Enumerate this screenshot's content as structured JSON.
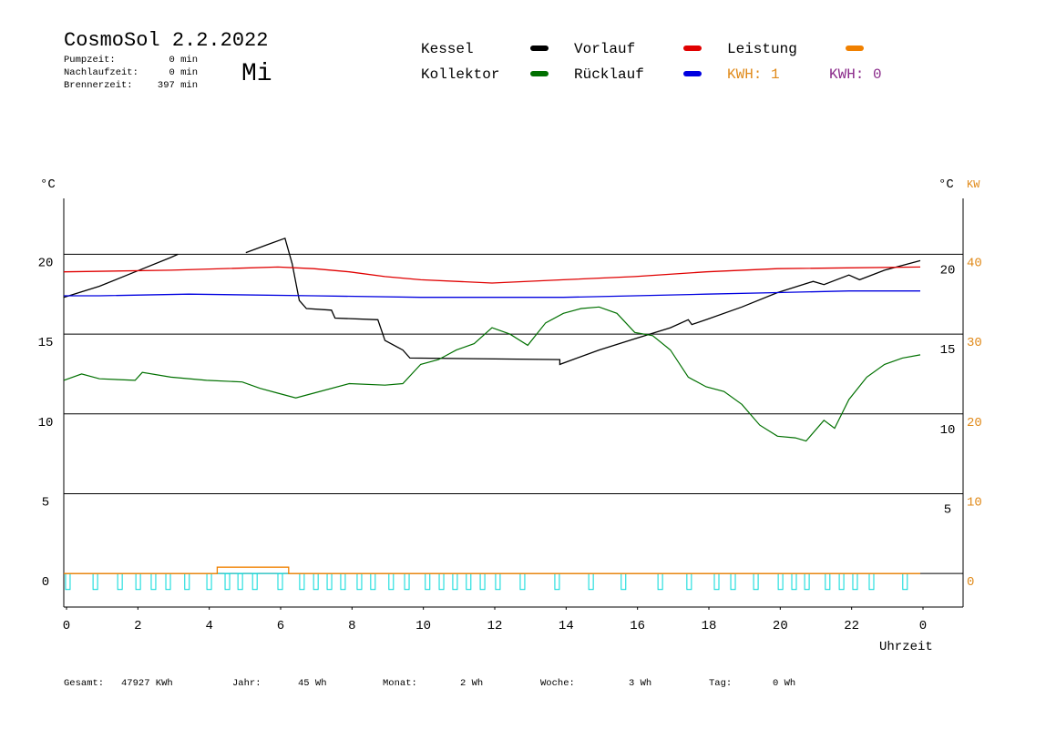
{
  "chart_data": {
    "type": "line",
    "title": "CosmoSol 2.2.2022",
    "day": "Mi",
    "info": [
      {
        "label": "Pumpzeit:",
        "value": "0 min"
      },
      {
        "label": "Nachlaufzeit:",
        "value": "0 min"
      },
      {
        "label": "Brennerzeit:",
        "value": "397 min"
      }
    ],
    "kwh": [
      {
        "label": "KWH: 1",
        "color": "#e08a1a"
      },
      {
        "label": "KWH: 0",
        "color": "#8a2a8a"
      }
    ],
    "ylabel": "°C",
    "y2label_left": "°C",
    "y2label": "KW",
    "xlabel": "Uhrzeit",
    "xlim": [
      0,
      25.2
    ],
    "xticks": [
      0,
      2,
      4,
      6,
      8,
      10,
      12,
      14,
      16,
      18,
      20,
      22,
      {
        "value": 24,
        "label": "0"
      }
    ],
    "ylim": [
      -2.1,
      23.5
    ],
    "yticks": [
      0,
      5,
      10,
      15,
      20
    ],
    "y_inner_ticks": [
      20,
      15,
      10,
      5
    ],
    "y2lim": [
      -4.2,
      47
    ],
    "y2ticks": [
      0,
      10,
      20,
      30,
      40
    ],
    "grid": true,
    "series": [
      {
        "name": "Kessel",
        "color": "#000000",
        "x": [
          0,
          1,
          2,
          3,
          3.2,
          4.0,
          5.1,
          5.7,
          6.2,
          6.4,
          6.6,
          6.8,
          7.5,
          7.6,
          8.8,
          9.0,
          9.5,
          9.7,
          13.9,
          13.9,
          15,
          16,
          17,
          17.5,
          17.6,
          18,
          19,
          20,
          21,
          21.3,
          22,
          22.3,
          23,
          24
        ],
        "values": [
          17.3,
          18.0,
          18.9,
          19.8,
          20.0,
          null,
          20.1,
          20.6,
          21.0,
          19.4,
          17.1,
          16.6,
          16.5,
          16.0,
          15.9,
          14.6,
          14.0,
          13.5,
          13.4,
          13.1,
          14.0,
          14.7,
          15.4,
          15.9,
          15.6,
          15.9,
          16.7,
          17.6,
          18.3,
          18.1,
          18.7,
          18.4,
          19.0,
          19.6
        ]
      },
      {
        "name": "Vorlauf",
        "color": "#e00000",
        "x": [
          0,
          3,
          6,
          7,
          8,
          9,
          10,
          12,
          14,
          16,
          18,
          20,
          24
        ],
        "values": [
          18.9,
          19.0,
          19.2,
          19.1,
          18.9,
          18.6,
          18.4,
          18.2,
          18.4,
          18.6,
          18.9,
          19.1,
          19.2
        ]
      },
      {
        "name": "Leistung",
        "color": "#f08000",
        "axis": "y2",
        "x": [
          0,
          4.3,
          4.3,
          6.3,
          6.3,
          24
        ],
        "values": [
          0,
          0,
          0.8,
          0.8,
          0,
          0
        ]
      },
      {
        "name": "Kollektor",
        "color": "#007000",
        "x": [
          0,
          0.5,
          1,
          2,
          2.2,
          3,
          4,
          5,
          5.5,
          6,
          6.5,
          7,
          8,
          9,
          9.5,
          10,
          10.5,
          11,
          11.5,
          12,
          12.5,
          13,
          13.5,
          14,
          14.5,
          15,
          15.5,
          16,
          16.5,
          17,
          17.5,
          18,
          18.5,
          19,
          19.5,
          20,
          20.5,
          20.8,
          21.3,
          21.6,
          22,
          22.5,
          23,
          23.5,
          24
        ],
        "values": [
          12.1,
          12.5,
          12.2,
          12.1,
          12.6,
          12.3,
          12.1,
          12.0,
          11.6,
          11.3,
          11.0,
          11.3,
          11.9,
          11.8,
          11.9,
          13.1,
          13.4,
          14.0,
          14.4,
          15.4,
          15.0,
          14.3,
          15.7,
          16.3,
          16.6,
          16.7,
          16.3,
          15.1,
          14.9,
          14.0,
          12.3,
          11.7,
          11.4,
          10.6,
          9.3,
          8.6,
          8.5,
          8.3,
          9.6,
          9.1,
          10.9,
          12.3,
          13.1,
          13.5,
          13.7
        ]
      },
      {
        "name": "Rücklauf",
        "color": "#0000e0",
        "x": [
          0,
          1,
          3.5,
          7,
          10,
          12,
          14,
          16,
          18,
          20,
          22,
          24
        ],
        "values": [
          17.4,
          17.4,
          17.5,
          17.4,
          17.3,
          17.3,
          17.3,
          17.4,
          17.5,
          17.6,
          17.7,
          17.7
        ]
      }
    ],
    "pulses": {
      "color": "#00d8d8",
      "depth": -1.0,
      "x": [
        0.05,
        0.82,
        1.51,
        2.02,
        2.45,
        2.86,
        3.39,
        4.01,
        4.52,
        4.88,
        5.29,
        6.0,
        6.61,
        7.0,
        7.38,
        7.76,
        8.22,
        8.6,
        9.11,
        9.55,
        10.13,
        10.52,
        10.9,
        11.28,
        11.67,
        12.1,
        12.79,
        13.76,
        14.71,
        15.62,
        16.65,
        17.46,
        18.23,
        18.69,
        19.33,
        20.02,
        20.4,
        20.76,
        21.34,
        21.73,
        22.11,
        22.57,
        23.51
      ]
    },
    "stats": [
      {
        "label": "Gesamt:",
        "value": "47927 KWh"
      },
      {
        "label": "Jahr:",
        "value": "45 Wh"
      },
      {
        "label": "Monat:",
        "value": "2 Wh"
      },
      {
        "label": "Woche:",
        "value": "3 Wh"
      },
      {
        "label": "Tag:",
        "value": "0 Wh"
      }
    ]
  }
}
